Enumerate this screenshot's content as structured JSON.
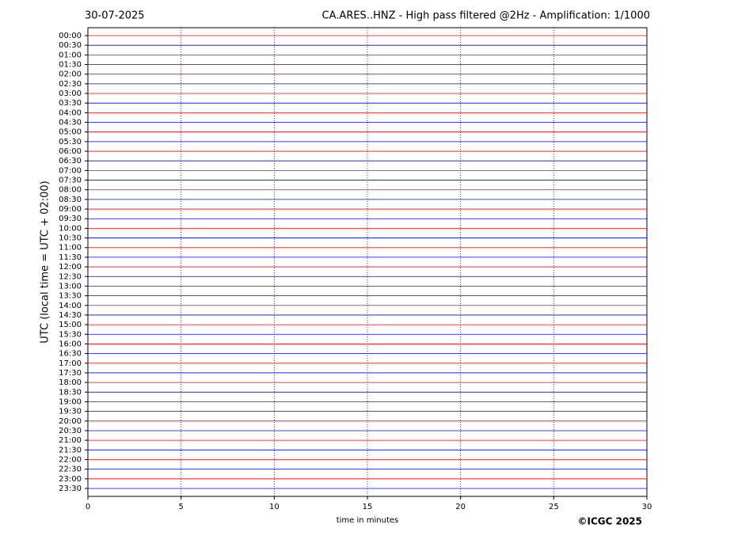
{
  "chart_data": {
    "type": "helicorder",
    "date": "30-07-2025",
    "title": "CA.ARES..HNZ - High pass filtered @2Hz - Amplification: 1/1000",
    "xlabel": "time in minutes",
    "ylabel": "UTC (local time = UTC + 02:00)",
    "credit": "©ICGC 2025",
    "categories": [
      "00:00",
      "00:30",
      "01:00",
      "01:30",
      "02:00",
      "02:30",
      "03:00",
      "03:30",
      "04:00",
      "04:30",
      "05:00",
      "05:30",
      "06:00",
      "06:30",
      "07:00",
      "07:30",
      "08:00",
      "08:30",
      "09:00",
      "09:30",
      "10:00",
      "10:30",
      "11:00",
      "11:30",
      "12:00",
      "12:30",
      "13:00",
      "13:30",
      "14:00",
      "14:30",
      "15:00",
      "15:30",
      "16:00",
      "16:30",
      "17:00",
      "17:30",
      "18:00",
      "18:30",
      "19:00",
      "19:30",
      "20:00",
      "20:30",
      "21:00",
      "21:30",
      "22:00",
      "22:30",
      "23:00",
      "23:30"
    ],
    "trace_colors": [
      "#ff0000",
      "#0000ff"
    ],
    "xlim": [
      0,
      30
    ],
    "xticks": [
      0,
      5,
      10,
      15,
      20,
      25,
      30
    ],
    "grid": true
  }
}
